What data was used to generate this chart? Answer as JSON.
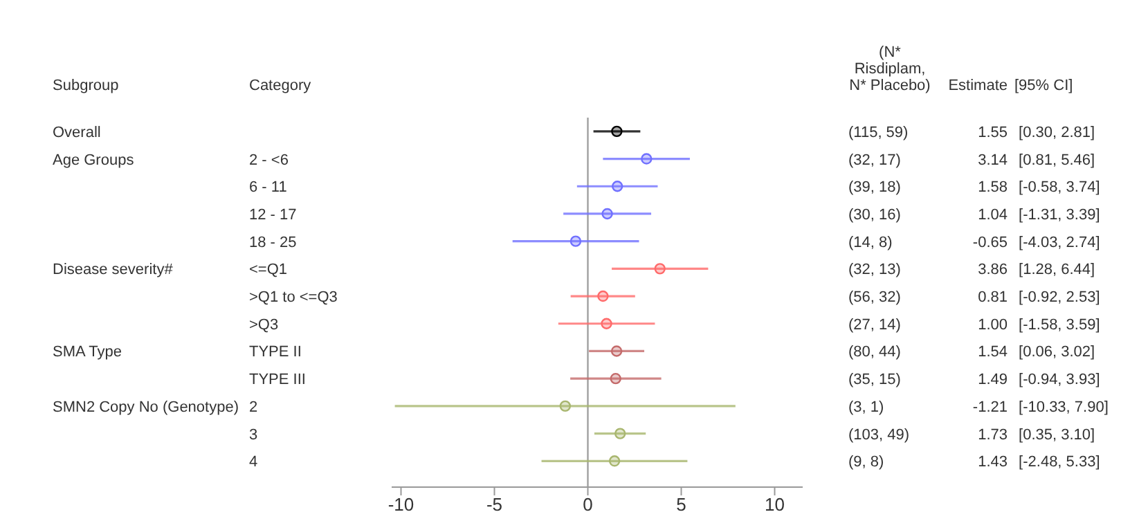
{
  "chart_data": {
    "type": "scatter",
    "orientation": "horizontal",
    "annotations": [
      "Subgroup",
      "Category",
      "(N* Risdiplam, N* Placebo)",
      "Estimate",
      "[95% CI]"
    ],
    "y_categories": [
      "Overall",
      "Age Groups",
      null,
      null,
      null,
      "Disease severity#",
      null,
      null,
      "SMA Type",
      null,
      "SMN2 Copy No (Genotype)",
      null,
      null
    ],
    "categories": [
      null,
      "2 - <6",
      "6 - 11",
      "12 - 17",
      "18 - 25",
      "<=Q1",
      ">Q1 to <=Q3",
      ">Q3",
      "TYPE II",
      "TYPE III",
      "2",
      "3",
      "4"
    ],
    "y2_categories": [
      "(115, 59) 1.55 [0.30, 2.81]",
      "(32, 17) 3.14 [0.81, 5.46]",
      "(39, 18) 1.58 [-0.58, 3.74]",
      "(30, 16) 1.04 [-1.31, 3.39]",
      "(14, 8) -0.65 [-4.03, 2.74]",
      "(32, 13) 3.86 [1.28, 6.44]",
      "(56, 32) 0.81 [-0.92, 2.53]",
      "(27, 14) 1.00 [-1.58, 3.59]",
      "(80, 44) 1.54 [0.06, 3.02]",
      "(35, 15) 1.49 [-0.94, 3.93]",
      "(3, 1) -1.21 [-10.33, 7.90]",
      "(103, 49) 1.73 [0.35, 3.10]",
      "(9, 8) 1.43 [-2.48, 5.33]"
    ],
    "series": [
      {
        "values": [
          1.55,
          3.14,
          1.58,
          1.04,
          -0.65,
          3.86,
          0.81,
          1.0,
          1.54,
          1.49,
          -1.21,
          1.73,
          1.43
        ],
        "errors": [
          [
            0.3,
            2.81
          ],
          [
            0.81,
            5.46
          ],
          [
            -0.58,
            3.74
          ],
          [
            -1.31,
            3.39
          ],
          [
            -4.03,
            2.74
          ],
          [
            1.28,
            6.44
          ],
          [
            -0.92,
            2.53
          ],
          [
            -1.58,
            3.59
          ],
          [
            0.06,
            3.02
          ],
          [
            -0.94,
            3.93
          ],
          [
            -10.33,
            7.9
          ],
          [
            0.35,
            3.1
          ],
          [
            -2.48,
            5.33
          ]
        ],
        "colors": [
          "#000000",
          "#7070ff",
          "#7070ff",
          "#7070ff",
          "#7070ff",
          "#ff6a6a",
          "#ff6a6a",
          "#ff6a6a",
          "#c46a6a",
          "#c46a6a",
          "#a8b66e",
          "#a8b66e",
          "#a8b66e"
        ]
      }
    ],
    "xlim": [
      -10.5,
      11.5
    ],
    "xticks": [
      -10,
      -5,
      0,
      5,
      10
    ],
    "ref_lines": [
      {
        "axis": "x",
        "value": 0,
        "color": "#a0a0a0"
      }
    ],
    "marker": "circle",
    "grid": false,
    "legend": false
  }
}
